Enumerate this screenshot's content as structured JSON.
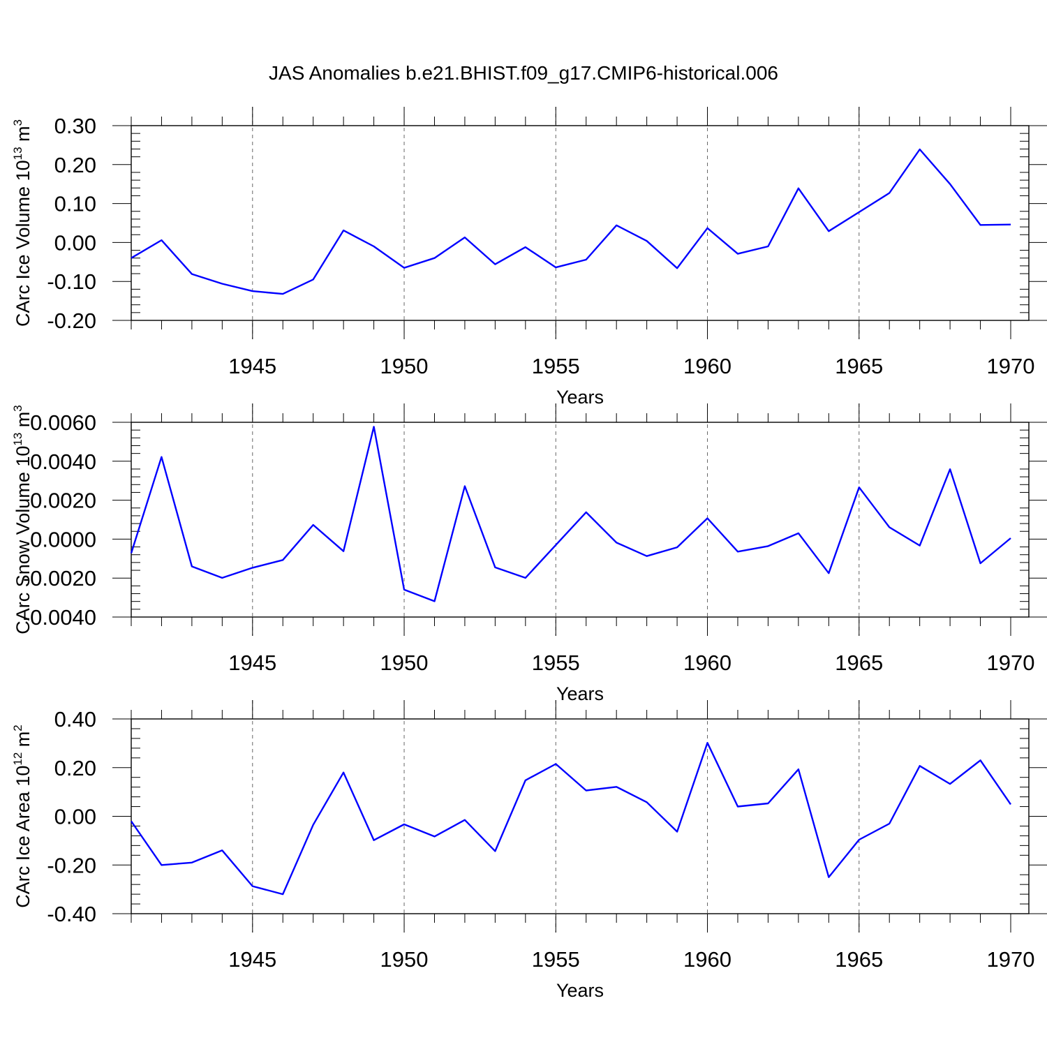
{
  "title": "JAS Anomalies b.e21.BHIST.f09_g17.CMIP6-historical.006",
  "chart_data": [
    {
      "type": "line",
      "ylabel": {
        "text": "CArc Ice Volume 10",
        "sup": "13",
        "suffix": " m",
        "sup2": "3"
      },
      "xlabel": "Years",
      "xlim": [
        1941,
        1970
      ],
      "xticks": [
        1945,
        1950,
        1955,
        1960,
        1965,
        1970
      ],
      "ylim": [
        -0.2,
        0.3
      ],
      "yticks": [
        -0.2,
        -0.1,
        0.0,
        0.1,
        0.2,
        0.3
      ],
      "ytick_labels": [
        "-0.20",
        "-0.10",
        "0.00",
        "0.10",
        "0.20",
        "0.30"
      ],
      "line_color": "#0000ff",
      "x": [
        1941,
        1942,
        1943,
        1944,
        1945,
        1946,
        1947,
        1948,
        1949,
        1950,
        1951,
        1952,
        1953,
        1954,
        1955,
        1956,
        1957,
        1958,
        1959,
        1960,
        1961,
        1962,
        1963,
        1964,
        1965,
        1966,
        1967,
        1968,
        1969,
        1970
      ],
      "values": [
        -0.04,
        0.006,
        -0.081,
        -0.106,
        -0.125,
        -0.132,
        -0.095,
        0.031,
        -0.01,
        -0.065,
        -0.04,
        0.013,
        -0.056,
        -0.012,
        -0.064,
        -0.044,
        0.044,
        0.004,
        -0.066,
        0.037,
        -0.029,
        -0.01,
        0.139,
        0.029,
        0.078,
        0.127,
        0.239,
        0.15,
        0.045,
        0.046
      ]
    },
    {
      "type": "line",
      "ylabel": {
        "text": "CArc Snow Volume 10",
        "sup": "13",
        "suffix": " m",
        "sup2": "3"
      },
      "xlabel": "Years",
      "xlim": [
        1941,
        1970
      ],
      "xticks": [
        1945,
        1950,
        1955,
        1960,
        1965,
        1970
      ],
      "ylim": [
        -0.004,
        0.006
      ],
      "yticks": [
        -0.004,
        -0.002,
        0.0,
        0.002,
        0.004,
        0.006
      ],
      "ytick_labels": [
        "-0.0040",
        "-0.0020",
        "0.0000",
        "0.0020",
        "0.0040",
        "0.0060"
      ],
      "line_color": "#0000ff",
      "x": [
        1941,
        1942,
        1943,
        1944,
        1945,
        1946,
        1947,
        1948,
        1949,
        1950,
        1951,
        1952,
        1953,
        1954,
        1955,
        1956,
        1957,
        1958,
        1959,
        1960,
        1961,
        1962,
        1963,
        1964,
        1965,
        1966,
        1967,
        1968,
        1969,
        1970
      ],
      "values": [
        -0.00072,
        0.00422,
        -0.0014,
        -0.00199,
        -0.00147,
        -0.00107,
        0.00073,
        -0.00062,
        0.00577,
        -0.00259,
        -0.00319,
        0.00272,
        -0.00145,
        -0.00199,
        -0.0003,
        0.00138,
        -0.00018,
        -0.00087,
        -0.00042,
        0.00107,
        -0.00064,
        -0.00036,
        0.0003,
        -0.00175,
        0.00266,
        0.00061,
        -0.00033,
        0.00359,
        -0.00124,
        5e-05
      ]
    },
    {
      "type": "line",
      "ylabel": {
        "text": "CArc Ice Area 10",
        "sup": "12",
        "suffix": " m",
        "sup2": "2"
      },
      "xlabel": "Years",
      "xlim": [
        1941,
        1970
      ],
      "xticks": [
        1945,
        1950,
        1955,
        1960,
        1965,
        1970
      ],
      "ylim": [
        -0.4,
        0.4
      ],
      "yticks": [
        -0.4,
        -0.2,
        0.0,
        0.2,
        0.4
      ],
      "ytick_labels": [
        "-0.40",
        "-0.20",
        "0.00",
        "0.20",
        "0.40"
      ],
      "line_color": "#0000ff",
      "x": [
        1941,
        1942,
        1943,
        1944,
        1945,
        1946,
        1947,
        1948,
        1949,
        1950,
        1951,
        1952,
        1953,
        1954,
        1955,
        1956,
        1957,
        1958,
        1959,
        1960,
        1961,
        1962,
        1963,
        1964,
        1965,
        1966,
        1967,
        1968,
        1969,
        1970
      ],
      "values": [
        -0.02,
        -0.2,
        -0.19,
        -0.14,
        -0.287,
        -0.32,
        -0.035,
        0.18,
        -0.098,
        -0.033,
        -0.083,
        -0.015,
        -0.143,
        0.148,
        0.215,
        0.106,
        0.121,
        0.058,
        -0.063,
        0.302,
        0.04,
        0.053,
        0.193,
        -0.25,
        -0.096,
        -0.03,
        0.207,
        0.133,
        0.23,
        0.049
      ]
    }
  ]
}
